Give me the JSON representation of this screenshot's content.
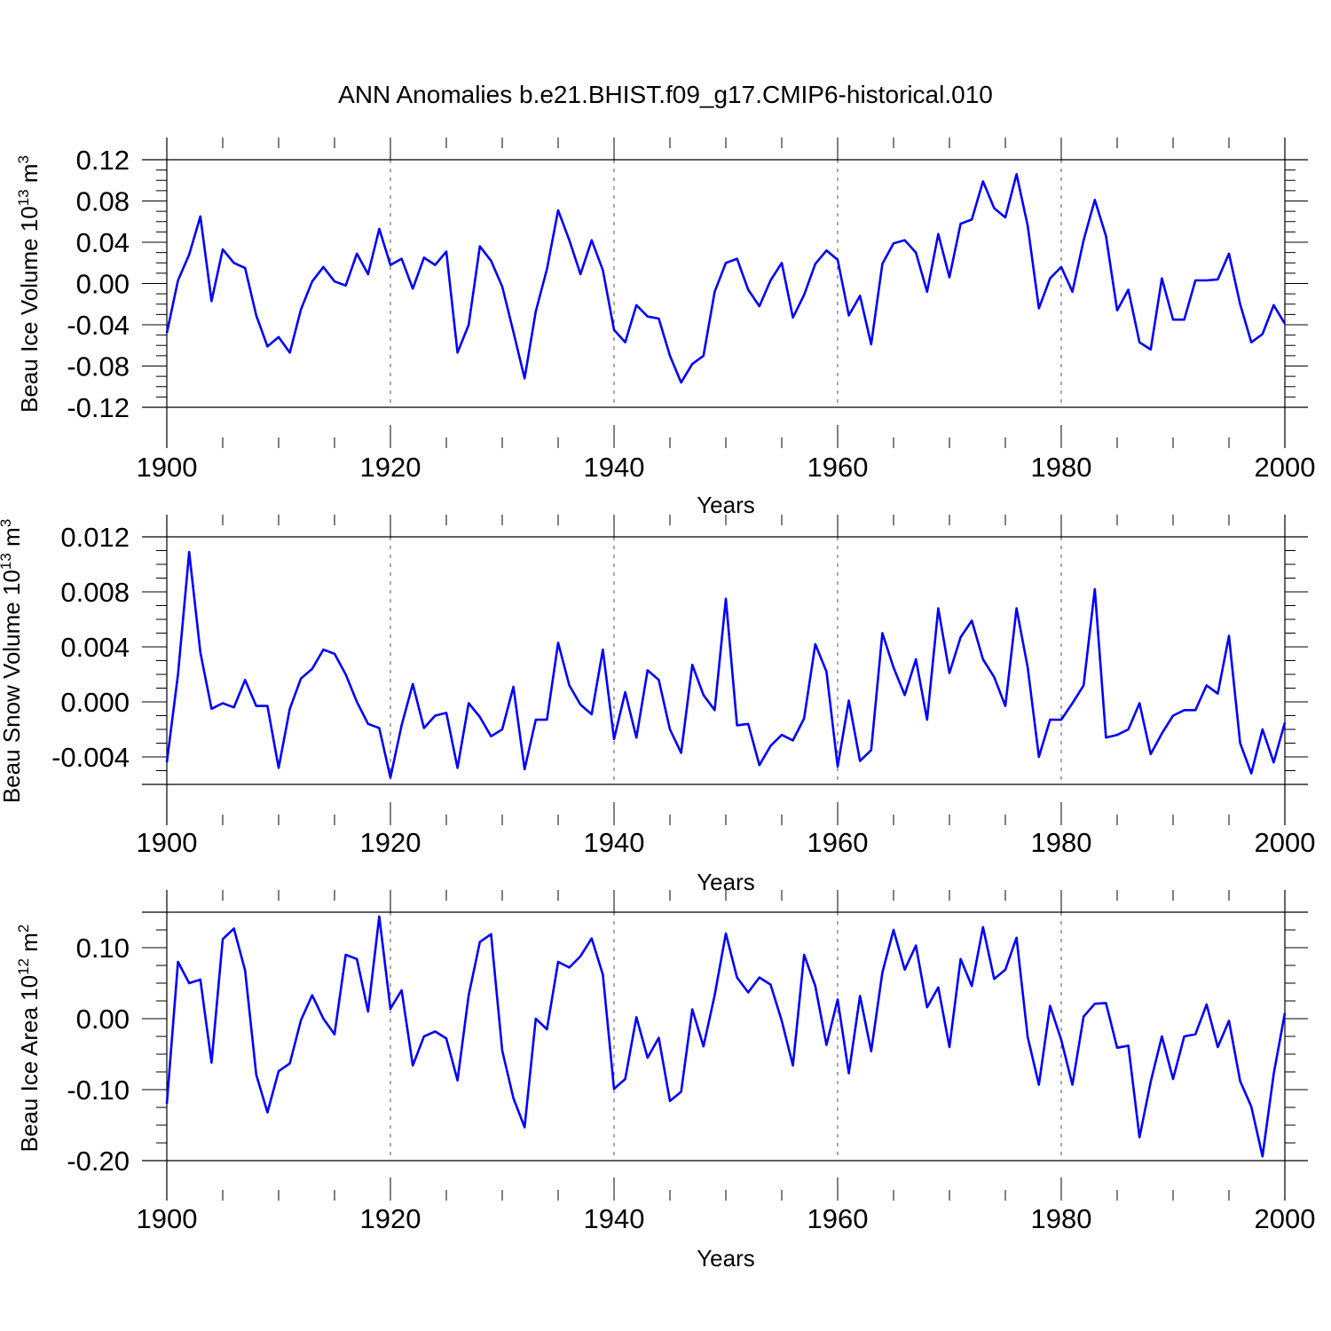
{
  "figure_title": "ANN Anomalies b.e21.BHIST.f09_g17.CMIP6-historical.010",
  "chart_data": [
    {
      "type": "line",
      "title": "ANN Anomalies b.e21.BHIST.f09_g17.CMIP6-historical.010",
      "ylabel": "Beau Ice Volume 10",
      "ylabel_sup": "13",
      "ylabel_unit": "m",
      "ylabel_unit_sup": "3",
      "xlabel": "Years",
      "xlim": [
        1900,
        2000
      ],
      "ylim": [
        -0.12,
        0.12
      ],
      "xticks": [
        1900,
        1920,
        1940,
        1960,
        1980,
        2000
      ],
      "xtick_labels": [
        "1900",
        "1920",
        "1940",
        "1960",
        "1980",
        "2000"
      ],
      "yticks": [
        -0.12,
        -0.08,
        -0.04,
        0.0,
        0.04,
        0.08,
        0.12
      ],
      "ytick_labels": [
        "-0.12",
        "-0.08",
        "-0.04",
        "0.00",
        "0.04",
        "0.08",
        "0.12"
      ],
      "series": [
        {
          "name": "Beau Ice Volume",
          "color": "#0000ff",
          "x_start": 1900,
          "values": [
            -0.048,
            0.003,
            0.028,
            0.065,
            -0.017,
            0.033,
            0.02,
            0.015,
            -0.031,
            -0.061,
            -0.052,
            -0.067,
            -0.025,
            0.002,
            0.016,
            0.002,
            -0.002,
            0.029,
            0.009,
            0.053,
            0.018,
            0.024,
            -0.005,
            0.025,
            0.018,
            0.031,
            -0.067,
            -0.04,
            0.036,
            0.022,
            -0.003,
            -0.047,
            -0.092,
            -0.027,
            0.014,
            0.071,
            0.042,
            0.009,
            0.042,
            0.013,
            -0.045,
            -0.057,
            -0.021,
            -0.032,
            -0.034,
            -0.07,
            -0.096,
            -0.078,
            -0.07,
            -0.008,
            0.02,
            0.024,
            -0.006,
            -0.022,
            0.003,
            0.02,
            -0.033,
            -0.011,
            0.019,
            0.032,
            0.023,
            -0.031,
            -0.012,
            -0.059,
            0.019,
            0.039,
            0.042,
            0.03,
            -0.008,
            0.048,
            0.006,
            0.058,
            0.062,
            0.099,
            0.073,
            0.064,
            0.106,
            0.056,
            -0.024,
            0.005,
            0.016,
            -0.008,
            0.042,
            0.081,
            0.046,
            -0.026,
            -0.006,
            -0.057,
            -0.064,
            0.005,
            -0.035,
            -0.035,
            0.003,
            0.003,
            0.004,
            0.029,
            -0.02,
            -0.057,
            -0.049,
            -0.021,
            -0.039
          ]
        }
      ]
    },
    {
      "type": "line",
      "ylabel": "Beau Snow Volume 10",
      "ylabel_sup": "13",
      "ylabel_unit": "m",
      "ylabel_unit_sup": "3",
      "xlabel": "Years",
      "xlim": [
        1900,
        2000
      ],
      "ylim": [
        -0.006,
        0.012
      ],
      "xticks": [
        1900,
        1920,
        1940,
        1960,
        1980,
        2000
      ],
      "xtick_labels": [
        "1900",
        "1920",
        "1940",
        "1960",
        "1980",
        "2000"
      ],
      "yticks": [
        -0.004,
        0.0,
        0.004,
        0.008,
        0.012
      ],
      "ytick_labels": [
        "-0.004",
        "0.000",
        "0.004",
        "0.008",
        "0.012"
      ],
      "series": [
        {
          "name": "Beau Snow Volume",
          "color": "#0000ff",
          "x_start": 1900,
          "values": [
            -0.0044,
            0.002,
            0.0109,
            0.0036,
            -0.0005,
            -0.0001,
            -0.0004,
            0.0016,
            -0.0003,
            -0.0003,
            -0.0048,
            -0.0005,
            0.0017,
            0.0024,
            0.0038,
            0.0035,
            0.002,
            0.0,
            -0.0016,
            -0.0019,
            -0.0055,
            -0.0017,
            0.0013,
            -0.0019,
            -0.001,
            -0.0008,
            -0.0048,
            -0.0001,
            -0.0011,
            -0.0025,
            -0.002,
            0.0011,
            -0.0049,
            -0.0013,
            -0.0013,
            0.0043,
            0.0012,
            -0.0002,
            -0.0009,
            0.0038,
            -0.0027,
            0.0007,
            -0.0026,
            0.0023,
            0.0016,
            -0.002,
            -0.0037,
            0.0027,
            0.0005,
            -0.0006,
            0.0075,
            -0.0017,
            -0.0016,
            -0.0046,
            -0.0032,
            -0.0024,
            -0.0028,
            -0.0012,
            0.0042,
            0.0022,
            -0.0047,
            0.0001,
            -0.0043,
            -0.0035,
            0.005,
            0.0025,
            0.0005,
            0.0031,
            -0.0013,
            0.0068,
            0.0021,
            0.0047,
            0.0059,
            0.0031,
            0.0018,
            -0.0003,
            0.0068,
            0.0025,
            -0.004,
            -0.0013,
            -0.0013,
            -0.0001,
            0.0012,
            0.0082,
            -0.0026,
            -0.0024,
            -0.002,
            -0.0001,
            -0.0038,
            -0.0023,
            -0.001,
            -0.0006,
            -0.0006,
            0.0012,
            0.0006,
            0.0048,
            -0.003,
            -0.0052,
            -0.002,
            -0.0044,
            -0.0015
          ]
        }
      ]
    },
    {
      "type": "line",
      "ylabel": "Beau Ice Area 10",
      "ylabel_sup": "12",
      "ylabel_unit": "m",
      "ylabel_unit_sup": "2",
      "xlabel": "Years",
      "xlim": [
        1900,
        2000
      ],
      "ylim": [
        -0.2,
        0.15
      ],
      "xticks": [
        1900,
        1920,
        1940,
        1960,
        1980,
        2000
      ],
      "xtick_labels": [
        "1900",
        "1920",
        "1940",
        "1960",
        "1980",
        "2000"
      ],
      "yticks": [
        -0.2,
        -0.1,
        0.0,
        0.1
      ],
      "ytick_labels": [
        "-0.20",
        "-0.10",
        "0.00",
        "0.10"
      ],
      "series": [
        {
          "name": "Beau Ice Area",
          "color": "#0000ff",
          "x_start": 1900,
          "values": [
            -0.12,
            0.08,
            0.05,
            0.055,
            -0.062,
            0.112,
            0.127,
            0.068,
            -0.079,
            -0.132,
            -0.074,
            -0.063,
            -0.002,
            0.033,
            0.0,
            -0.022,
            0.09,
            0.084,
            0.01,
            0.144,
            0.014,
            0.04,
            -0.066,
            -0.025,
            -0.018,
            -0.028,
            -0.087,
            0.033,
            0.108,
            0.119,
            -0.045,
            -0.112,
            -0.153,
            0.0,
            -0.015,
            0.08,
            0.072,
            0.088,
            0.113,
            0.062,
            -0.099,
            -0.085,
            0.002,
            -0.055,
            -0.027,
            -0.116,
            -0.103,
            0.013,
            -0.039,
            0.033,
            0.12,
            0.058,
            0.037,
            0.058,
            0.048,
            -0.003,
            -0.066,
            0.09,
            0.046,
            -0.037,
            0.027,
            -0.077,
            0.032,
            -0.046,
            0.065,
            0.125,
            0.069,
            0.103,
            0.016,
            0.044,
            -0.04,
            0.084,
            0.046,
            0.129,
            0.056,
            0.069,
            0.114,
            -0.026,
            -0.093,
            0.018,
            -0.03,
            -0.093,
            0.003,
            0.021,
            0.022,
            -0.041,
            -0.038,
            -0.167,
            -0.089,
            -0.025,
            -0.085,
            -0.025,
            -0.022,
            0.02,
            -0.04,
            -0.003,
            -0.088,
            -0.124,
            -0.194,
            -0.078,
            0.008
          ]
        }
      ]
    }
  ]
}
